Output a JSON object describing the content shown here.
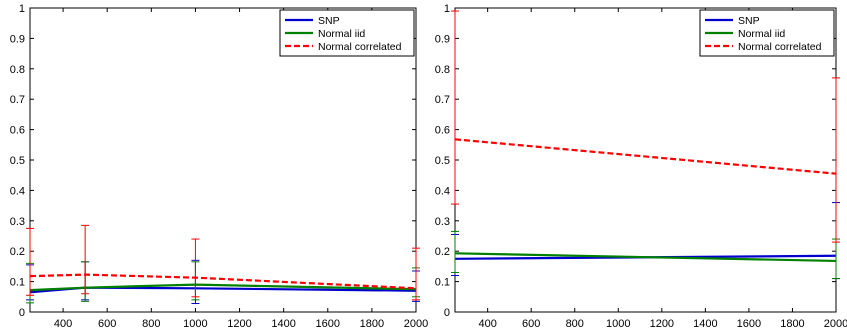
{
  "chart_data": [
    {
      "type": "line",
      "title": "",
      "xlabel": "",
      "ylabel": "",
      "xlim": [
        250,
        2000
      ],
      "ylim": [
        0,
        1
      ],
      "xticks": [
        400,
        600,
        800,
        1000,
        1200,
        1400,
        1600,
        1800,
        2000
      ],
      "xtick_labels": [
        "400",
        "600",
        "800",
        "1000",
        "1200",
        "1400",
        "1600",
        "1800",
        "2000"
      ],
      "yticks": [
        0,
        0.1,
        0.2,
        0.3,
        0.4,
        0.5,
        0.6,
        0.7,
        0.8,
        0.9,
        1
      ],
      "ytick_labels": [
        "0",
        "0.1",
        "0.2",
        "0.3",
        "0.4",
        "0.5",
        "0.6",
        "0.7",
        "0.8",
        "0.9",
        "1"
      ],
      "grid": false,
      "legend_position": "top-right",
      "x": [
        250,
        500,
        1000,
        2000
      ],
      "series": [
        {
          "name": "SNP",
          "color": "#0000cc",
          "dash": "solid",
          "values": [
            0.065,
            0.08,
            0.078,
            0.07
          ],
          "lower": [
            0.04,
            0.04,
            0.028,
            0.035
          ],
          "upper": [
            0.155,
            0.165,
            0.17,
            0.135
          ]
        },
        {
          "name": "Normal iid",
          "color": "#008000",
          "dash": "solid",
          "values": [
            0.072,
            0.08,
            0.09,
            0.075
          ],
          "lower": [
            0.03,
            0.035,
            0.04,
            0.05
          ],
          "upper": [
            0.16,
            0.165,
            0.165,
            0.145
          ]
        },
        {
          "name": "Normal correlated",
          "color": "#ff0000",
          "dash": "dashed",
          "values": [
            0.118,
            0.123,
            0.113,
            0.078
          ],
          "lower": [
            0.055,
            0.06,
            0.05,
            0.04
          ],
          "upper": [
            0.275,
            0.285,
            0.24,
            0.21
          ]
        }
      ]
    },
    {
      "type": "line",
      "title": "",
      "xlabel": "",
      "ylabel": "",
      "xlim": [
        250,
        2000
      ],
      "ylim": [
        0,
        1
      ],
      "xticks": [
        400,
        600,
        800,
        1000,
        1200,
        1400,
        1600,
        1800,
        2000
      ],
      "xtick_labels": [
        "400",
        "600",
        "800",
        "1000",
        "1200",
        "1400",
        "1600",
        "1800",
        "2000"
      ],
      "yticks": [
        0,
        0.1,
        0.2,
        0.3,
        0.4,
        0.5,
        0.6,
        0.7,
        0.8,
        0.9,
        1
      ],
      "ytick_labels": [
        "0",
        "0.1",
        "0.2",
        "0.3",
        "0.4",
        "0.5",
        "0.6",
        "0.7",
        "0.8",
        "0.9",
        "1"
      ],
      "grid": false,
      "legend_position": "top-right",
      "x": [
        250,
        2000
      ],
      "series": [
        {
          "name": "SNP",
          "color": "#0000cc",
          "dash": "solid",
          "values": [
            0.175,
            0.185
          ],
          "lower": [
            0.12,
            0.11
          ],
          "upper": [
            0.255,
            0.36
          ]
        },
        {
          "name": "Normal iid",
          "color": "#008000",
          "dash": "solid",
          "values": [
            0.193,
            0.168
          ],
          "lower": [
            0.13,
            0.11
          ],
          "upper": [
            0.265,
            0.24
          ]
        },
        {
          "name": "Normal correlated",
          "color": "#ff0000",
          "dash": "dashed",
          "values": [
            0.568,
            0.455
          ],
          "lower": [
            0.355,
            0.23
          ],
          "upper": [
            0.99,
            0.77
          ]
        }
      ]
    }
  ]
}
